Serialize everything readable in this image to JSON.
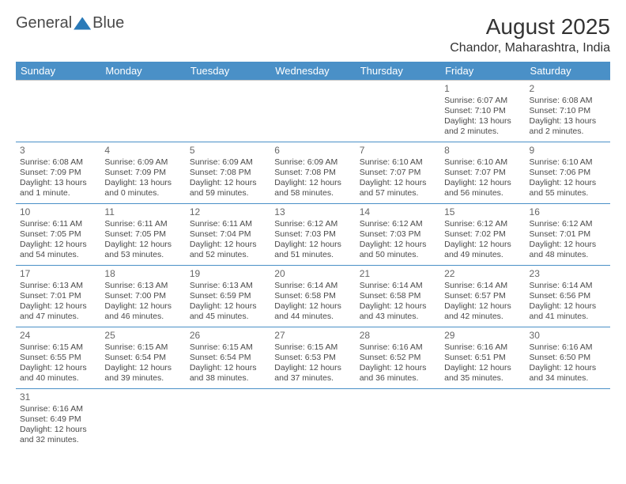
{
  "logo": {
    "text_left": "General",
    "text_right": "Blue"
  },
  "title": "August 2025",
  "location": "Chandor, Maharashtra, India",
  "colors": {
    "header_bg": "#4a90c7",
    "header_fg": "#ffffff",
    "row_border": "#4a90c7",
    "text": "#4a4a4a",
    "logo_accent": "#2a7ab8"
  },
  "day_headers": [
    "Sunday",
    "Monday",
    "Tuesday",
    "Wednesday",
    "Thursday",
    "Friday",
    "Saturday"
  ],
  "weeks": [
    [
      null,
      null,
      null,
      null,
      null,
      {
        "n": "1",
        "sr": "6:07 AM",
        "ss": "7:10 PM",
        "dl": "13 hours and 2 minutes."
      },
      {
        "n": "2",
        "sr": "6:08 AM",
        "ss": "7:10 PM",
        "dl": "13 hours and 2 minutes."
      }
    ],
    [
      {
        "n": "3",
        "sr": "6:08 AM",
        "ss": "7:09 PM",
        "dl": "13 hours and 1 minute."
      },
      {
        "n": "4",
        "sr": "6:09 AM",
        "ss": "7:09 PM",
        "dl": "13 hours and 0 minutes."
      },
      {
        "n": "5",
        "sr": "6:09 AM",
        "ss": "7:08 PM",
        "dl": "12 hours and 59 minutes."
      },
      {
        "n": "6",
        "sr": "6:09 AM",
        "ss": "7:08 PM",
        "dl": "12 hours and 58 minutes."
      },
      {
        "n": "7",
        "sr": "6:10 AM",
        "ss": "7:07 PM",
        "dl": "12 hours and 57 minutes."
      },
      {
        "n": "8",
        "sr": "6:10 AM",
        "ss": "7:07 PM",
        "dl": "12 hours and 56 minutes."
      },
      {
        "n": "9",
        "sr": "6:10 AM",
        "ss": "7:06 PM",
        "dl": "12 hours and 55 minutes."
      }
    ],
    [
      {
        "n": "10",
        "sr": "6:11 AM",
        "ss": "7:05 PM",
        "dl": "12 hours and 54 minutes."
      },
      {
        "n": "11",
        "sr": "6:11 AM",
        "ss": "7:05 PM",
        "dl": "12 hours and 53 minutes."
      },
      {
        "n": "12",
        "sr": "6:11 AM",
        "ss": "7:04 PM",
        "dl": "12 hours and 52 minutes."
      },
      {
        "n": "13",
        "sr": "6:12 AM",
        "ss": "7:03 PM",
        "dl": "12 hours and 51 minutes."
      },
      {
        "n": "14",
        "sr": "6:12 AM",
        "ss": "7:03 PM",
        "dl": "12 hours and 50 minutes."
      },
      {
        "n": "15",
        "sr": "6:12 AM",
        "ss": "7:02 PM",
        "dl": "12 hours and 49 minutes."
      },
      {
        "n": "16",
        "sr": "6:12 AM",
        "ss": "7:01 PM",
        "dl": "12 hours and 48 minutes."
      }
    ],
    [
      {
        "n": "17",
        "sr": "6:13 AM",
        "ss": "7:01 PM",
        "dl": "12 hours and 47 minutes."
      },
      {
        "n": "18",
        "sr": "6:13 AM",
        "ss": "7:00 PM",
        "dl": "12 hours and 46 minutes."
      },
      {
        "n": "19",
        "sr": "6:13 AM",
        "ss": "6:59 PM",
        "dl": "12 hours and 45 minutes."
      },
      {
        "n": "20",
        "sr": "6:14 AM",
        "ss": "6:58 PM",
        "dl": "12 hours and 44 minutes."
      },
      {
        "n": "21",
        "sr": "6:14 AM",
        "ss": "6:58 PM",
        "dl": "12 hours and 43 minutes."
      },
      {
        "n": "22",
        "sr": "6:14 AM",
        "ss": "6:57 PM",
        "dl": "12 hours and 42 minutes."
      },
      {
        "n": "23",
        "sr": "6:14 AM",
        "ss": "6:56 PM",
        "dl": "12 hours and 41 minutes."
      }
    ],
    [
      {
        "n": "24",
        "sr": "6:15 AM",
        "ss": "6:55 PM",
        "dl": "12 hours and 40 minutes."
      },
      {
        "n": "25",
        "sr": "6:15 AM",
        "ss": "6:54 PM",
        "dl": "12 hours and 39 minutes."
      },
      {
        "n": "26",
        "sr": "6:15 AM",
        "ss": "6:54 PM",
        "dl": "12 hours and 38 minutes."
      },
      {
        "n": "27",
        "sr": "6:15 AM",
        "ss": "6:53 PM",
        "dl": "12 hours and 37 minutes."
      },
      {
        "n": "28",
        "sr": "6:16 AM",
        "ss": "6:52 PM",
        "dl": "12 hours and 36 minutes."
      },
      {
        "n": "29",
        "sr": "6:16 AM",
        "ss": "6:51 PM",
        "dl": "12 hours and 35 minutes."
      },
      {
        "n": "30",
        "sr": "6:16 AM",
        "ss": "6:50 PM",
        "dl": "12 hours and 34 minutes."
      }
    ],
    [
      {
        "n": "31",
        "sr": "6:16 AM",
        "ss": "6:49 PM",
        "dl": "12 hours and 32 minutes."
      },
      null,
      null,
      null,
      null,
      null,
      null
    ]
  ],
  "labels": {
    "sunrise": "Sunrise:",
    "sunset": "Sunset:",
    "daylight": "Daylight:"
  }
}
